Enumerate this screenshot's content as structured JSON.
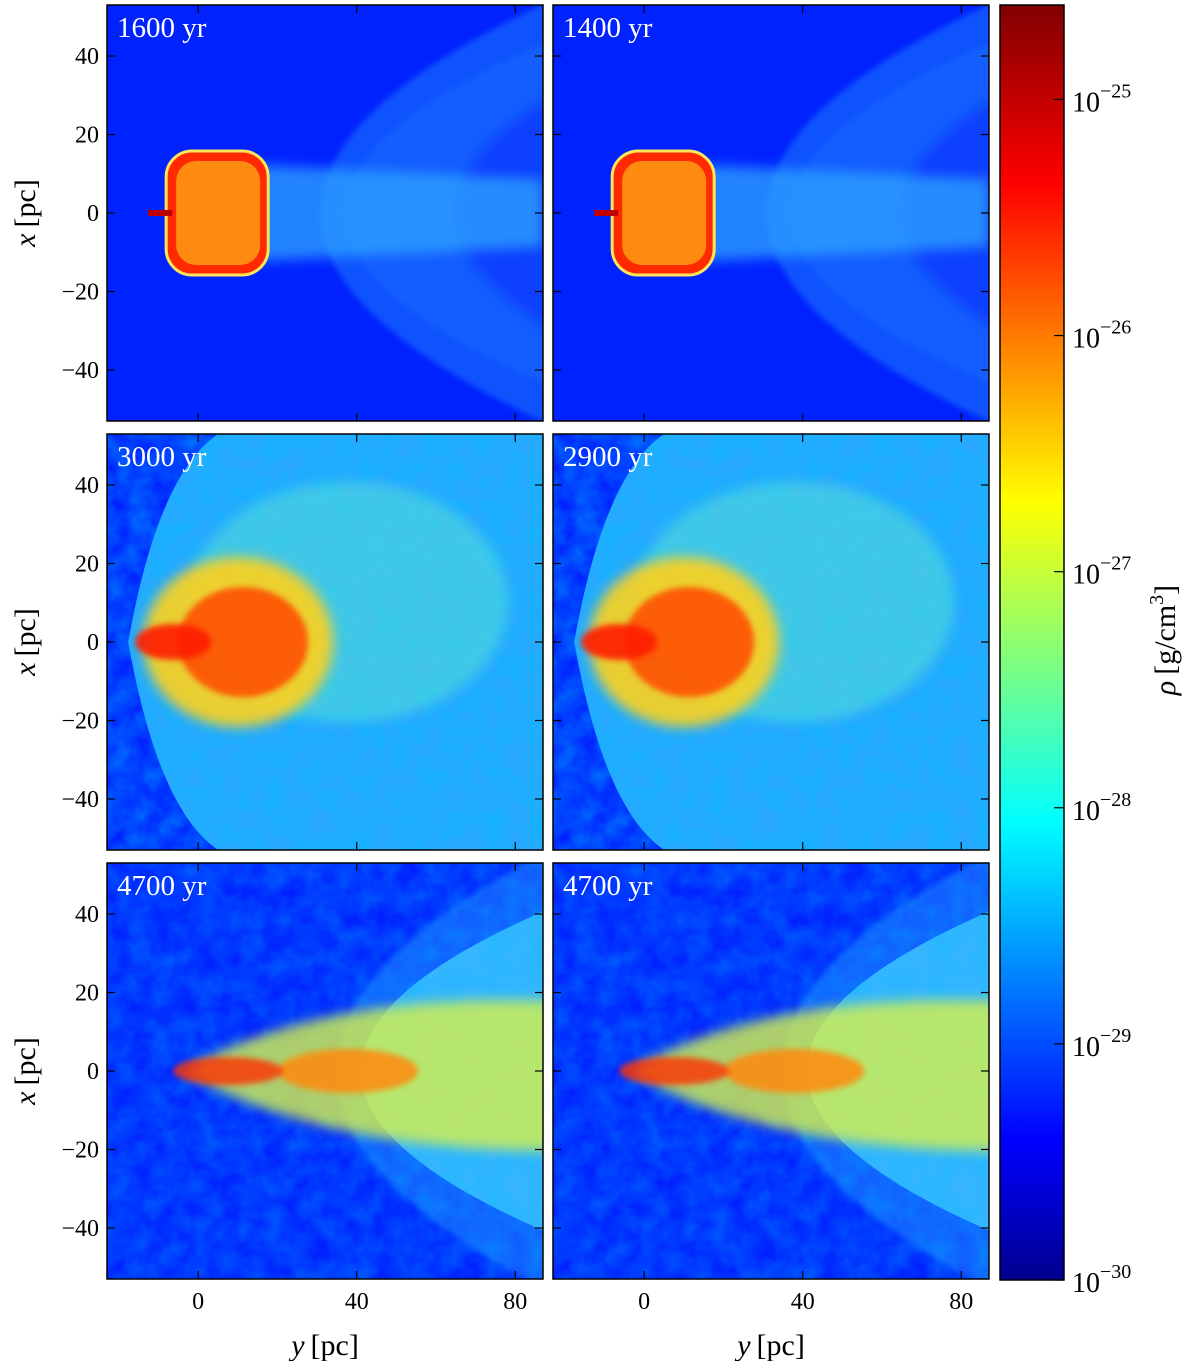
{
  "chart_data": {
    "type": "heatmap",
    "description_quantity": "rho [g/cm^3]",
    "layout": {
      "rows": 3,
      "cols": 2
    },
    "xlim": [
      -23,
      87
    ],
    "ylim": [
      -53,
      53
    ],
    "xticks": [
      0,
      40,
      80
    ],
    "yticks": [
      40,
      20,
      0,
      -20,
      -40
    ],
    "xticklabels": [
      "0",
      "40",
      "80"
    ],
    "yticklabels": [
      "40",
      "20",
      "0",
      "−20",
      "−40"
    ],
    "xlabel": {
      "var": "y",
      "unit": "[pc]"
    },
    "ylabel": {
      "var": "x",
      "unit": "[pc]"
    },
    "panels": [
      {
        "label": "1600 yr",
        "stage": "early"
      },
      {
        "label": "1400 yr",
        "stage": "early"
      },
      {
        "label": "3000 yr",
        "stage": "mid"
      },
      {
        "label": "2900 yr",
        "stage": "mid"
      },
      {
        "label": "4700 yr",
        "stage": "late"
      },
      {
        "label": "4700 yr",
        "stage": "late"
      }
    ],
    "colorbar": {
      "label_var": "ρ",
      "label_unit": "[g/cm",
      "label_unit_exp": "3",
      "label_unit_close": "]",
      "scale": "log",
      "range_exp": [
        -30,
        -24.6
      ],
      "ticks": [
        {
          "base": "10",
          "exp": "−25",
          "value_exp": -25
        },
        {
          "base": "10",
          "exp": "−26",
          "value_exp": -26
        },
        {
          "base": "10",
          "exp": "−27",
          "value_exp": -27
        },
        {
          "base": "10",
          "exp": "−28",
          "value_exp": -28
        },
        {
          "base": "10",
          "exp": "−29",
          "value_exp": -29
        },
        {
          "base": "10",
          "exp": "−30",
          "value_exp": -30
        }
      ],
      "colormap": "jet"
    }
  }
}
